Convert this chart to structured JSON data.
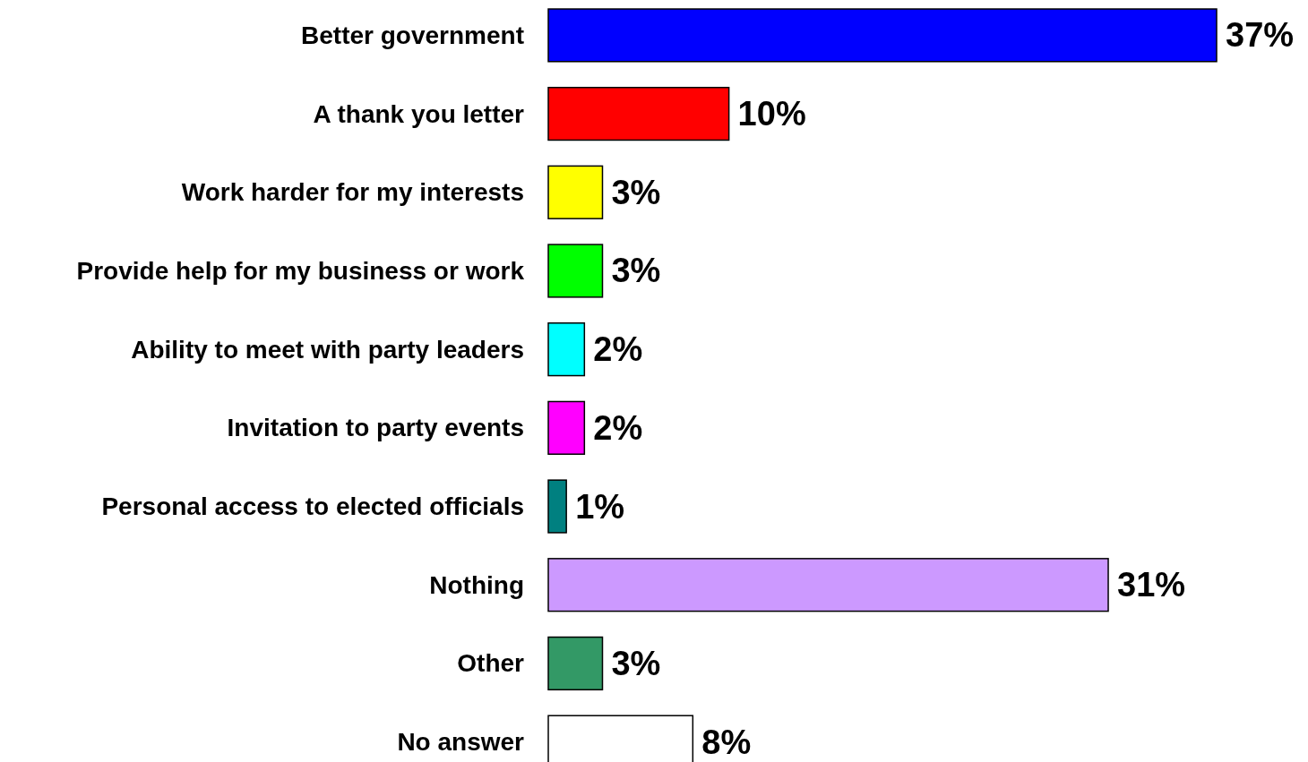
{
  "chart_data": {
    "type": "bar",
    "orientation": "horizontal",
    "categories": [
      "Better government",
      "A thank you letter",
      "Work harder for my interests",
      "Provide help for my business or work",
      "Ability to meet with party leaders",
      "Invitation to party events",
      "Personal access to elected officials",
      "Nothing",
      "Other",
      "No answer"
    ],
    "values": [
      37,
      10,
      3,
      3,
      2,
      2,
      1,
      31,
      3,
      8
    ],
    "colors": [
      "#0000ff",
      "#ff0000",
      "#ffff00",
      "#00ff00",
      "#00ffff",
      "#ff00ff",
      "#008080",
      "#cc99ff",
      "#339966",
      "#ffffff"
    ],
    "value_labels": [
      "37%",
      "10%",
      "3%",
      "3%",
      "2%",
      "2%",
      "1%",
      "31%",
      "3%",
      "8%"
    ]
  }
}
